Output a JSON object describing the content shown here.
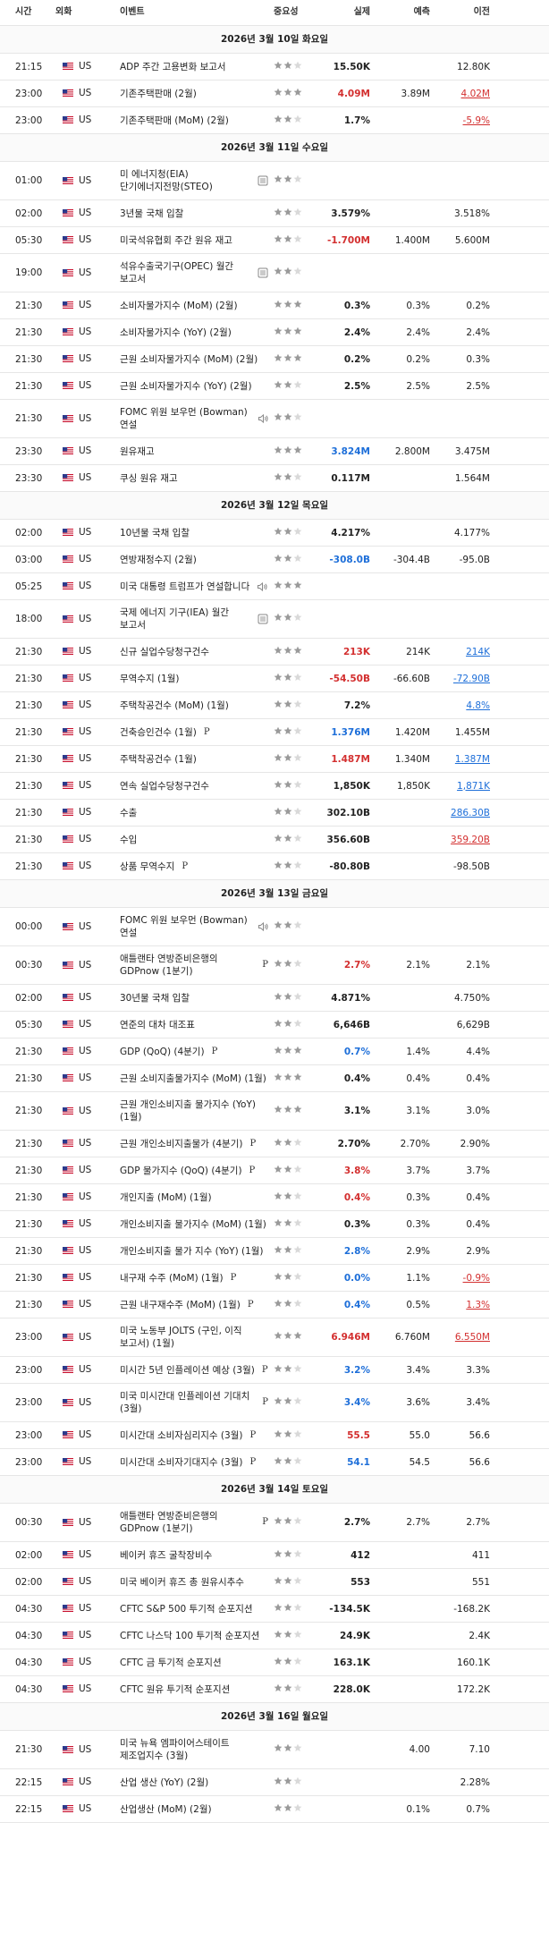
{
  "table": {
    "columns": [
      "시간",
      "외화",
      "이벤트",
      "중요성",
      "실제",
      "예측",
      "이전"
    ],
    "sections": [
      {
        "date": "2026년 3월 10일 화요일",
        "rows": [
          {
            "time": "21:15",
            "currency": "US",
            "event": "ADP 주간 고용변화 보고서",
            "importance": 2,
            "actual": "15.50K",
            "previous": "12.80K"
          },
          {
            "time": "23:00",
            "currency": "US",
            "event": "기존주택판매 (2월)",
            "importance": 3,
            "actual": "4.09M",
            "actual_tone": "red",
            "forecast": "3.89M",
            "previous": "4.02M",
            "previous_tone": "red"
          },
          {
            "time": "23:00",
            "currency": "US",
            "event": "기존주택판매 (MoM) (2월)",
            "importance": 2,
            "actual": "1.7%",
            "previous": "-5.9%",
            "previous_tone": "red"
          }
        ]
      },
      {
        "date": "2026년 3월 11일 수요일",
        "rows": [
          {
            "time": "01:00",
            "currency": "US",
            "event": "미 에너지청(EIA) 단기에너지전망(STEO)",
            "icon": "doc",
            "importance": 2
          },
          {
            "time": "02:00",
            "currency": "US",
            "event": "3년물 국채 입찰",
            "importance": 2,
            "actual": "3.579%",
            "previous": "3.518%"
          },
          {
            "time": "05:30",
            "currency": "US",
            "event": "미국석유협회 주간 원유 재고",
            "importance": 2,
            "actual": "-1.700M",
            "actual_tone": "red",
            "forecast": "1.400M",
            "previous": "5.600M"
          },
          {
            "time": "19:00",
            "currency": "US",
            "event": "석유수출국기구(OPEC) 월간 보고서",
            "icon": "doc",
            "importance": 2
          },
          {
            "time": "21:30",
            "currency": "US",
            "event": "소비자물가지수 (MoM) (2월)",
            "importance": 3,
            "actual": "0.3%",
            "forecast": "0.3%",
            "previous": "0.2%"
          },
          {
            "time": "21:30",
            "currency": "US",
            "event": "소비자물가지수 (YoY) (2월)",
            "importance": 3,
            "actual": "2.4%",
            "forecast": "2.4%",
            "previous": "2.4%"
          },
          {
            "time": "21:30",
            "currency": "US",
            "event": "근원 소비자물가지수 (MoM) (2월)",
            "importance": 3,
            "actual": "0.2%",
            "forecast": "0.2%",
            "previous": "0.3%"
          },
          {
            "time": "21:30",
            "currency": "US",
            "event": "근원 소비자물가지수 (YoY) (2월)",
            "importance": 2,
            "actual": "2.5%",
            "forecast": "2.5%",
            "previous": "2.5%"
          },
          {
            "time": "21:30",
            "currency": "US",
            "event": "FOMC 위원 보우먼 (Bowman) 연설",
            "icon": "speech",
            "importance": 2
          },
          {
            "time": "23:30",
            "currency": "US",
            "event": "원유재고",
            "importance": 3,
            "actual": "3.824M",
            "actual_tone": "blue",
            "forecast": "2.800M",
            "previous": "3.475M"
          },
          {
            "time": "23:30",
            "currency": "US",
            "event": "쿠싱 원유 재고",
            "importance": 2,
            "actual": "0.117M",
            "previous": "1.564M"
          }
        ]
      },
      {
        "date": "2026년 3월 12일 목요일",
        "rows": [
          {
            "time": "02:00",
            "currency": "US",
            "event": "10년물 국채 입찰",
            "importance": 2,
            "actual": "4.217%",
            "previous": "4.177%"
          },
          {
            "time": "03:00",
            "currency": "US",
            "event": "연방재정수지 (2월)",
            "importance": 2,
            "actual": "-308.0B",
            "actual_tone": "blue",
            "forecast": "-304.4B",
            "previous": "-95.0B"
          },
          {
            "time": "05:25",
            "currency": "US",
            "event": "미국 대통령 트럼프가 연설합니다",
            "icon": "speech",
            "importance": 3
          },
          {
            "time": "18:00",
            "currency": "US",
            "event": "국제 에너지 기구(IEA) 월간 보고서",
            "icon": "doc",
            "importance": 2
          },
          {
            "time": "21:30",
            "currency": "US",
            "event": "신규 실업수당청구건수",
            "importance": 3,
            "actual": "213K",
            "actual_tone": "red",
            "forecast": "214K",
            "previous": "214K",
            "previous_tone": "blue"
          },
          {
            "time": "21:30",
            "currency": "US",
            "event": "무역수지 (1월)",
            "importance": 2,
            "actual": "-54.50B",
            "actual_tone": "red",
            "forecast": "-66.60B",
            "previous": "-72.90B",
            "previous_tone": "blue"
          },
          {
            "time": "21:30",
            "currency": "US",
            "event": "주택착공건수 (MoM) (1월)",
            "importance": 2,
            "actual": "7.2%",
            "previous": "4.8%",
            "previous_tone": "blue"
          },
          {
            "time": "21:30",
            "currency": "US",
            "event": "건축승인건수 (1월)",
            "badge": "P",
            "importance": 2,
            "actual": "1.376M",
            "actual_tone": "blue",
            "forecast": "1.420M",
            "previous": "1.455M"
          },
          {
            "time": "21:30",
            "currency": "US",
            "event": "주택착공건수 (1월)",
            "importance": 2,
            "actual": "1.487M",
            "actual_tone": "red",
            "forecast": "1.340M",
            "previous": "1.387M",
            "previous_tone": "blue"
          },
          {
            "time": "21:30",
            "currency": "US",
            "event": "연속 실업수당청구건수",
            "importance": 2,
            "actual": "1,850K",
            "forecast": "1,850K",
            "previous": "1,871K",
            "previous_tone": "blue"
          },
          {
            "time": "21:30",
            "currency": "US",
            "event": "수출",
            "importance": 2,
            "actual": "302.10B",
            "previous": "286.30B",
            "previous_tone": "blue"
          },
          {
            "time": "21:30",
            "currency": "US",
            "event": "수입",
            "importance": 2,
            "actual": "356.60B",
            "previous": "359.20B",
            "previous_tone": "red"
          },
          {
            "time": "21:30",
            "currency": "US",
            "event": "상품 무역수지",
            "badge": "P",
            "importance": 2,
            "actual": "-80.80B",
            "previous": "-98.50B"
          }
        ]
      },
      {
        "date": "2026년 3월 13일 금요일",
        "rows": [
          {
            "time": "00:00",
            "currency": "US",
            "event": "FOMC 위원 보우먼 (Bowman) 연설",
            "icon": "speech",
            "importance": 2
          },
          {
            "time": "00:30",
            "currency": "US",
            "event": "애틀랜타 연방준비은행의 GDPnow (1분기)",
            "badge": "P",
            "importance": 2,
            "actual": "2.7%",
            "actual_tone": "red",
            "forecast": "2.1%",
            "previous": "2.1%"
          },
          {
            "time": "02:00",
            "currency": "US",
            "event": "30년물 국채 입찰",
            "importance": 2,
            "actual": "4.871%",
            "previous": "4.750%"
          },
          {
            "time": "05:30",
            "currency": "US",
            "event": "연준의 대차 대조표",
            "importance": 2,
            "actual": "6,646B",
            "previous": "6,629B"
          },
          {
            "time": "21:30",
            "currency": "US",
            "event": "GDP (QoQ) (4분기)",
            "badge": "P",
            "importance": 3,
            "actual": "0.7%",
            "actual_tone": "blue",
            "forecast": "1.4%",
            "previous": "4.4%"
          },
          {
            "time": "21:30",
            "currency": "US",
            "event": "근원 소비지출물가지수 (MoM) (1월)",
            "importance": 3,
            "actual": "0.4%",
            "forecast": "0.4%",
            "previous": "0.4%"
          },
          {
            "time": "21:30",
            "currency": "US",
            "event": "근원 개인소비지출 물가지수 (YoY) (1월)",
            "importance": 3,
            "actual": "3.1%",
            "forecast": "3.1%",
            "previous": "3.0%"
          },
          {
            "time": "21:30",
            "currency": "US",
            "event": "근원 개인소비지출물가 (4분기)",
            "badge": "P",
            "importance": 2,
            "actual": "2.70%",
            "forecast": "2.70%",
            "previous": "2.90%"
          },
          {
            "time": "21:30",
            "currency": "US",
            "event": "GDP 물가지수 (QoQ) (4분기)",
            "badge": "P",
            "importance": 2,
            "actual": "3.8%",
            "actual_tone": "red",
            "forecast": "3.7%",
            "previous": "3.7%"
          },
          {
            "time": "21:30",
            "currency": "US",
            "event": "개인지출 (MoM) (1월)",
            "importance": 2,
            "actual": "0.4%",
            "actual_tone": "red",
            "forecast": "0.3%",
            "previous": "0.4%"
          },
          {
            "time": "21:30",
            "currency": "US",
            "event": "개인소비지출 물가지수 (MoM) (1월)",
            "importance": 2,
            "actual": "0.3%",
            "forecast": "0.3%",
            "previous": "0.4%"
          },
          {
            "time": "21:30",
            "currency": "US",
            "event": "개인소비지출 물가 지수 (YoY) (1월)",
            "importance": 2,
            "actual": "2.8%",
            "actual_tone": "blue",
            "forecast": "2.9%",
            "previous": "2.9%"
          },
          {
            "time": "21:30",
            "currency": "US",
            "event": "내구재 수주 (MoM) (1월)",
            "badge": "P",
            "importance": 2,
            "actual": "0.0%",
            "actual_tone": "blue",
            "forecast": "1.1%",
            "previous": "-0.9%",
            "previous_tone": "red"
          },
          {
            "time": "21:30",
            "currency": "US",
            "event": "근원 내구재수주 (MoM) (1월)",
            "badge": "P",
            "importance": 2,
            "actual": "0.4%",
            "actual_tone": "blue",
            "forecast": "0.5%",
            "previous": "1.3%",
            "previous_tone": "red"
          },
          {
            "time": "23:00",
            "currency": "US",
            "event": "미국 노동부 JOLTS (구인, 이직 보고서) (1월)",
            "importance": 3,
            "actual": "6.946M",
            "actual_tone": "red",
            "forecast": "6.760M",
            "previous": "6.550M",
            "previous_tone": "red"
          },
          {
            "time": "23:00",
            "currency": "US",
            "event": "미시간 5년 인플레이션 예상 (3월)",
            "badge": "P",
            "importance": 2,
            "actual": "3.2%",
            "actual_tone": "blue",
            "forecast": "3.4%",
            "previous": "3.3%"
          },
          {
            "time": "23:00",
            "currency": "US",
            "event": "미국 미시간대 인플레이션 기대치 (3월)",
            "badge": "P",
            "importance": 2,
            "actual": "3.4%",
            "actual_tone": "blue",
            "forecast": "3.6%",
            "previous": "3.4%"
          },
          {
            "time": "23:00",
            "currency": "US",
            "event": "미시간대 소비자심리지수 (3월)",
            "badge": "P",
            "importance": 2,
            "actual": "55.5",
            "actual_tone": "red",
            "forecast": "55.0",
            "previous": "56.6"
          },
          {
            "time": "23:00",
            "currency": "US",
            "event": "미시간대 소비자기대지수 (3월)",
            "badge": "P",
            "importance": 2,
            "actual": "54.1",
            "actual_tone": "blue",
            "forecast": "54.5",
            "previous": "56.6"
          }
        ]
      },
      {
        "date": "2026년 3월 14일 토요일",
        "rows": [
          {
            "time": "00:30",
            "currency": "US",
            "event": "애틀랜타 연방준비은행의 GDPnow (1분기)",
            "badge": "P",
            "importance": 2,
            "actual": "2.7%",
            "forecast": "2.7%",
            "previous": "2.7%"
          },
          {
            "time": "02:00",
            "currency": "US",
            "event": "베이커 휴즈 굴착장비수",
            "importance": 2,
            "actual": "412",
            "previous": "411"
          },
          {
            "time": "02:00",
            "currency": "US",
            "event": "미국 베이커 휴즈 총 원유시추수",
            "importance": 2,
            "actual": "553",
            "previous": "551"
          },
          {
            "time": "04:30",
            "currency": "US",
            "event": "CFTC S&P 500 투기적 순포지션",
            "importance": 2,
            "actual": "-134.5K",
            "previous": "-168.2K"
          },
          {
            "time": "04:30",
            "currency": "US",
            "event": "CFTC 나스닥 100 투기적 순포지션",
            "importance": 2,
            "actual": "24.9K",
            "previous": "2.4K"
          },
          {
            "time": "04:30",
            "currency": "US",
            "event": "CFTC 금 투기적 순포지션",
            "importance": 2,
            "actual": "163.1K",
            "previous": "160.1K"
          },
          {
            "time": "04:30",
            "currency": "US",
            "event": "CFTC 원유 투기적 순포지션",
            "importance": 2,
            "actual": "228.0K",
            "previous": "172.2K"
          }
        ]
      },
      {
        "date": "2026년 3월 16일 월요일",
        "rows": [
          {
            "time": "21:30",
            "currency": "US",
            "event": "미국 뉴욕 엠파이어스테이트 제조업지수 (3월)",
            "importance": 2,
            "forecast": "4.00",
            "previous": "7.10"
          },
          {
            "time": "22:15",
            "currency": "US",
            "event": "산업 생산 (YoY) (2월)",
            "importance": 2,
            "previous": "2.28%"
          },
          {
            "time": "22:15",
            "currency": "US",
            "event": "산업생산 (MoM) (2월)",
            "importance": 2,
            "forecast": "0.1%",
            "previous": "0.7%"
          }
        ]
      }
    ]
  }
}
